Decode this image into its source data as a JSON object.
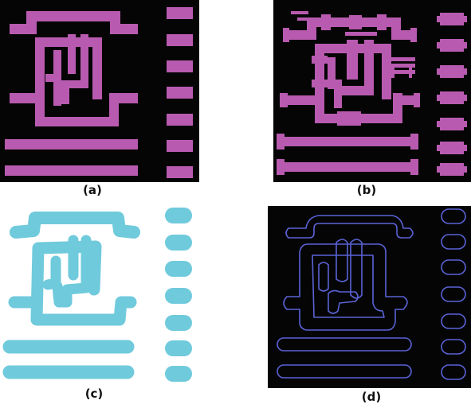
{
  "figure": {
    "panels": [
      {
        "id": "a",
        "caption": "(a)"
      },
      {
        "id": "b",
        "caption": "(b)"
      },
      {
        "id": "c",
        "caption": "(c)"
      },
      {
        "id": "d",
        "caption": "(d)"
      }
    ],
    "colors": {
      "mask_pink": "#b85bb0",
      "resist_cyan": "#6fcadc",
      "contour_blue": "#5a63d6",
      "dark_bg": "#050505"
    }
  }
}
